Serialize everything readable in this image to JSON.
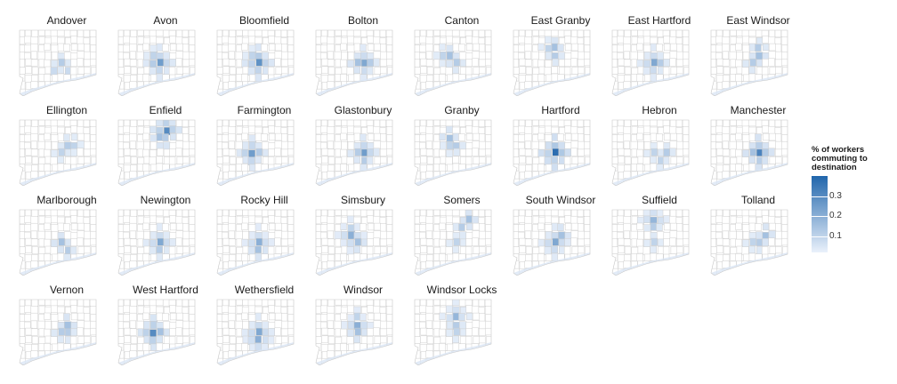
{
  "panels": [
    {
      "title": "Andover",
      "hot": [
        [
          6,
          4,
          0.12
        ],
        [
          5,
          5,
          0.08
        ],
        [
          7,
          5,
          0.08
        ]
      ]
    },
    {
      "title": "Avon",
      "hot": [
        [
          6,
          4,
          0.25
        ],
        [
          5,
          4,
          0.12
        ],
        [
          5,
          3,
          0.1
        ]
      ]
    },
    {
      "title": "Bloomfield",
      "hot": [
        [
          6,
          4,
          0.28
        ],
        [
          5,
          3,
          0.1
        ],
        [
          6,
          3,
          0.12
        ]
      ]
    },
    {
      "title": "Bolton",
      "hot": [
        [
          7,
          4,
          0.22
        ],
        [
          6,
          4,
          0.15
        ],
        [
          8,
          4,
          0.12
        ]
      ]
    },
    {
      "title": "Canton",
      "hot": [
        [
          5,
          3,
          0.15
        ],
        [
          6,
          4,
          0.12
        ],
        [
          4,
          3,
          0.1
        ]
      ]
    },
    {
      "title": "East Granby",
      "hot": [
        [
          6,
          2,
          0.15
        ],
        [
          6,
          3,
          0.12
        ],
        [
          5,
          2,
          0.1
        ]
      ]
    },
    {
      "title": "East Hartford",
      "hot": [
        [
          6,
          4,
          0.22
        ],
        [
          7,
          4,
          0.12
        ]
      ]
    },
    {
      "title": "East Windsor",
      "hot": [
        [
          7,
          3,
          0.15
        ],
        [
          7,
          2,
          0.12
        ],
        [
          6,
          4,
          0.12
        ]
      ]
    },
    {
      "title": "Ellington",
      "hot": [
        [
          7,
          3,
          0.12
        ],
        [
          8,
          3,
          0.1
        ],
        [
          6,
          4,
          0.1
        ]
      ]
    },
    {
      "title": "Enfield",
      "hot": [
        [
          7,
          1,
          0.3
        ],
        [
          6,
          2,
          0.15
        ],
        [
          7,
          2,
          0.12
        ]
      ]
    },
    {
      "title": "Farmington",
      "hot": [
        [
          5,
          4,
          0.25
        ],
        [
          6,
          4,
          0.12
        ],
        [
          4,
          4,
          0.1
        ]
      ]
    },
    {
      "title": "Glastonbury",
      "hot": [
        [
          7,
          4,
          0.25
        ],
        [
          6,
          4,
          0.12
        ],
        [
          7,
          5,
          0.12
        ]
      ]
    },
    {
      "title": "Granby",
      "hot": [
        [
          5,
          2,
          0.15
        ],
        [
          6,
          3,
          0.12
        ],
        [
          5,
          3,
          0.1
        ]
      ]
    },
    {
      "title": "Hartford",
      "hot": [
        [
          6,
          4,
          0.38
        ],
        [
          5,
          4,
          0.1
        ],
        [
          6,
          5,
          0.1
        ]
      ]
    },
    {
      "title": "Hebron",
      "hot": [
        [
          8,
          4,
          0.12
        ],
        [
          6,
          4,
          0.1
        ],
        [
          7,
          5,
          0.1
        ]
      ]
    },
    {
      "title": "Manchester",
      "hot": [
        [
          7,
          4,
          0.32
        ],
        [
          6,
          4,
          0.15
        ],
        [
          8,
          4,
          0.12
        ]
      ]
    },
    {
      "title": "Marlborough",
      "hot": [
        [
          6,
          4,
          0.15
        ],
        [
          7,
          5,
          0.12
        ]
      ]
    },
    {
      "title": "Newington",
      "hot": [
        [
          6,
          4,
          0.22
        ],
        [
          6,
          5,
          0.12
        ]
      ]
    },
    {
      "title": "Rocky Hill",
      "hot": [
        [
          6,
          4,
          0.2
        ],
        [
          6,
          5,
          0.15
        ]
      ]
    },
    {
      "title": "Simsbury",
      "hot": [
        [
          5,
          3,
          0.2
        ],
        [
          6,
          4,
          0.15
        ],
        [
          5,
          2,
          0.1
        ]
      ]
    },
    {
      "title": "Somers",
      "hot": [
        [
          8,
          1,
          0.15
        ],
        [
          7,
          2,
          0.12
        ],
        [
          6,
          4,
          0.1
        ]
      ]
    },
    {
      "title": "South Windsor",
      "hot": [
        [
          6,
          4,
          0.22
        ],
        [
          7,
          3,
          0.15
        ]
      ]
    },
    {
      "title": "Suffield",
      "hot": [
        [
          6,
          1,
          0.18
        ],
        [
          6,
          2,
          0.12
        ],
        [
          6,
          4,
          0.1
        ]
      ]
    },
    {
      "title": "Tolland",
      "hot": [
        [
          8,
          3,
          0.15
        ],
        [
          7,
          4,
          0.12
        ],
        [
          6,
          4,
          0.1
        ]
      ]
    },
    {
      "title": "Vernon",
      "hot": [
        [
          7,
          3,
          0.15
        ],
        [
          6,
          4,
          0.12
        ],
        [
          7,
          4,
          0.12
        ]
      ]
    },
    {
      "title": "West Hartford",
      "hot": [
        [
          5,
          4,
          0.3
        ],
        [
          6,
          4,
          0.15
        ]
      ]
    },
    {
      "title": "Wethersfield",
      "hot": [
        [
          6,
          4,
          0.22
        ],
        [
          6,
          5,
          0.2
        ]
      ]
    },
    {
      "title": "Windsor",
      "hot": [
        [
          6,
          3,
          0.2
        ],
        [
          6,
          4,
          0.15
        ],
        [
          6,
          2,
          0.1
        ]
      ]
    },
    {
      "title": "Windsor Locks",
      "hot": [
        [
          6,
          2,
          0.18
        ],
        [
          6,
          3,
          0.12
        ],
        [
          6,
          4,
          0.1
        ]
      ]
    }
  ],
  "legend": {
    "title": [
      "% of workers",
      "commuting to",
      "destination"
    ],
    "ticks": [
      "0.1",
      "0.2",
      "0.3"
    ],
    "tick_values": [
      0.1,
      0.2,
      0.3
    ],
    "min": 0.02,
    "max": 0.4,
    "low_color": "#eaf1fb",
    "high_color": "#2166ac"
  }
}
